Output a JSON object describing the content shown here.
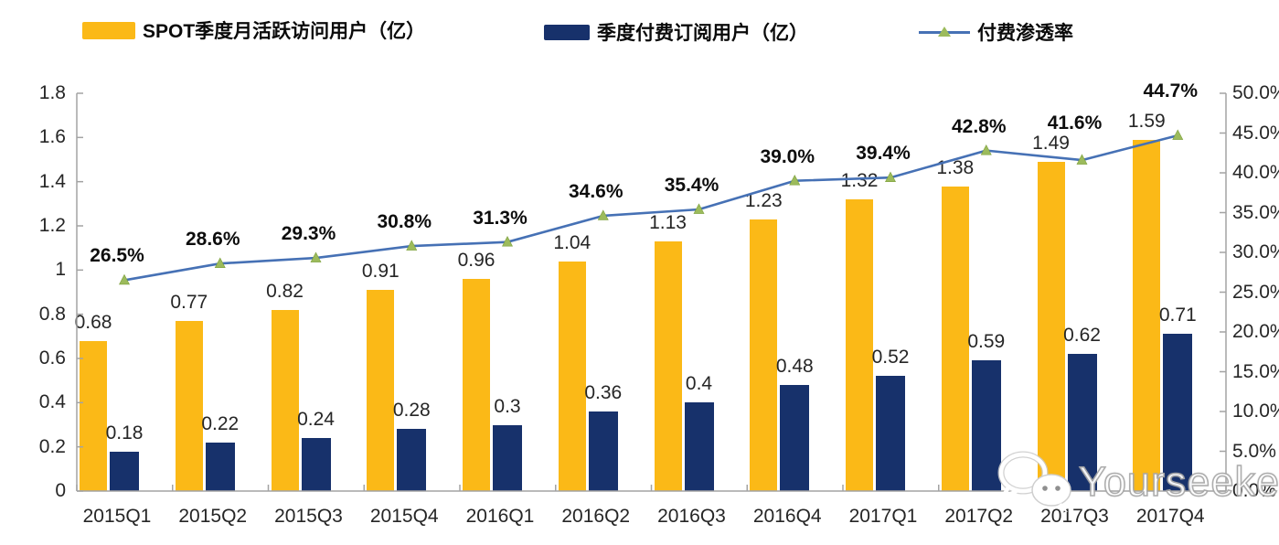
{
  "legend": {
    "items": [
      {
        "label": "SPOT季度月活跃访问用户（亿）",
        "type": "bar",
        "color": "#FBB917"
      },
      {
        "label": "季度付费订阅用户（亿）",
        "type": "bar",
        "color": "#17316B"
      },
      {
        "label": "付费渗透率",
        "type": "line",
        "color": "#4671B5",
        "marker_color": "#9CBB5C"
      }
    ]
  },
  "watermark": {
    "text": "Yourseeker",
    "icon": "wechat-icon"
  },
  "chart_data": {
    "type": "bar",
    "subtype": "clustered-bar-with-line-combo",
    "categories": [
      "2015Q1",
      "2015Q2",
      "2015Q3",
      "2015Q4",
      "2016Q1",
      "2016Q2",
      "2016Q3",
      "2016Q4",
      "2017Q1",
      "2017Q2",
      "2017Q3",
      "2017Q4"
    ],
    "series": [
      {
        "name": "SPOT季度月活跃访问用户（亿）",
        "type": "bar",
        "axis": "left",
        "color": "#FBB917",
        "values": [
          0.68,
          0.77,
          0.82,
          0.91,
          0.96,
          1.04,
          1.13,
          1.23,
          1.32,
          1.38,
          1.49,
          1.59
        ],
        "labels": [
          "0.68",
          "0.77",
          "0.82",
          "0.91",
          "0.96",
          "1.04",
          "1.13",
          "1.23",
          "1.32",
          "1.38",
          "1.49",
          "1.59"
        ]
      },
      {
        "name": "季度付费订阅用户（亿）",
        "type": "bar",
        "axis": "left",
        "color": "#17316B",
        "values": [
          0.18,
          0.22,
          0.24,
          0.28,
          0.3,
          0.36,
          0.4,
          0.48,
          0.52,
          0.59,
          0.62,
          0.71
        ],
        "labels": [
          "0.18",
          "0.22",
          "0.24",
          "0.28",
          "0.3",
          "0.36",
          "0.4",
          "0.48",
          "0.52",
          "0.59",
          "0.62",
          "0.71"
        ]
      },
      {
        "name": "付费渗透率",
        "type": "line",
        "axis": "right",
        "color": "#4671B5",
        "marker": "triangle",
        "marker_color": "#9CBB5C",
        "values": [
          26.5,
          28.6,
          29.3,
          30.8,
          31.3,
          34.6,
          35.4,
          39.0,
          39.4,
          42.8,
          41.6,
          44.7
        ],
        "labels": [
          "26.5%",
          "28.6%",
          "29.3%",
          "30.8%",
          "31.3%",
          "34.6%",
          "35.4%",
          "39.0%",
          "39.4%",
          "42.8%",
          "41.6%",
          "44.7%"
        ]
      }
    ],
    "left_axis": {
      "min": 0,
      "max": 1.8,
      "step": 0.2,
      "ticks": [
        "0",
        "0.2",
        "0.4",
        "0.6",
        "0.8",
        "1",
        "1.2",
        "1.4",
        "1.6",
        "1.8"
      ]
    },
    "right_axis": {
      "min": 0,
      "max": 50,
      "step": 5,
      "ticks": [
        "0.0%",
        "5.0%",
        "10.0%",
        "15.0%",
        "20.0%",
        "25.0%",
        "30.0%",
        "35.0%",
        "40.0%",
        "45.0%",
        "50.0%"
      ]
    },
    "grid": false,
    "legend_position": "top",
    "axis_color": "#A3A3A3"
  }
}
